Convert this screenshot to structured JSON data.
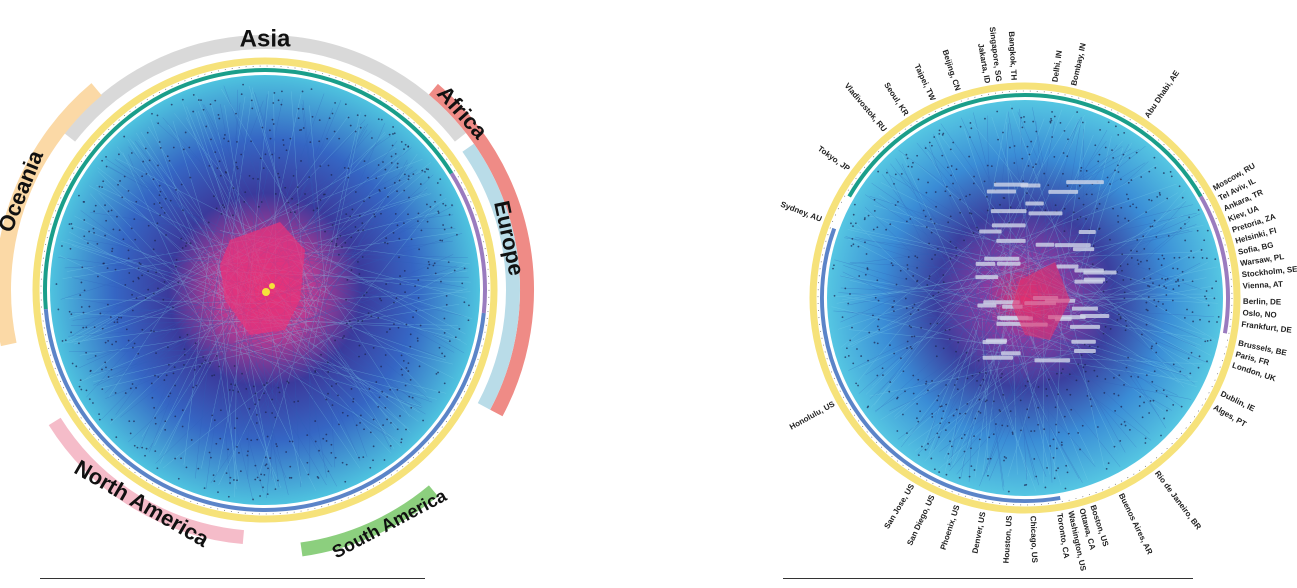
{
  "left_panel": {
    "regions": [
      {
        "name": "Asia",
        "color": "#d9d9d9"
      },
      {
        "name": "Oceania",
        "color": "#fbd9a6"
      },
      {
        "name": "Africa",
        "color": "#ef8b86"
      },
      {
        "name": "Europe",
        "color": "#b9dce8"
      },
      {
        "name": "North America",
        "color": "#f5bcc9"
      },
      {
        "name": "South America",
        "color": "#8ccf7e"
      }
    ]
  },
  "right_panel": {
    "cities": [
      "Delhi, IN",
      "Bombay, IN",
      "Abu Dhabi, AE",
      "Moscow, RU",
      "Tel Aviv, IL",
      "Ankara, TR",
      "Kiev, UA",
      "Pretoria, ZA",
      "Helsinki, FI",
      "Sofia, BG",
      "Warsaw, PL",
      "Stockholm, SE",
      "Vienna, AT",
      "Berlin, DE",
      "Oslo, NO",
      "Frankfurt, DE",
      "Brussels, BE",
      "Paris, FR",
      "London, UK",
      "Dublin, IE",
      "Alges, PT",
      "Rio de Janeiro, BR",
      "Buenos Aires, AR",
      "Boston, US",
      "Ottawa, CA",
      "Washington, US",
      "Toronto, CA",
      "Chicago, US",
      "Houston, US",
      "Denver, US",
      "Phoenix, US",
      "San Diego, US",
      "San Jose, US",
      "Honolulu, US",
      "Sydney, AU",
      "Tokyo, JP",
      "Vladivostok, RU",
      "Seoul, KR",
      "Taipei, TW",
      "Beijing, CN",
      "Jakarta, ID",
      "Singapore, SG",
      "Bangkok, TH"
    ]
  },
  "colors": {
    "outer_blue": "#4ec3df",
    "mid_blue": "#3a6fc7",
    "core_navy": "#2c3590",
    "core_purple": "#7a3ea8",
    "hot_pink": "#e0306f",
    "yellow_ring": "#f6e27a",
    "teal_ring": "#1a9e8a",
    "lavender_ring": "#9a7bbf"
  }
}
